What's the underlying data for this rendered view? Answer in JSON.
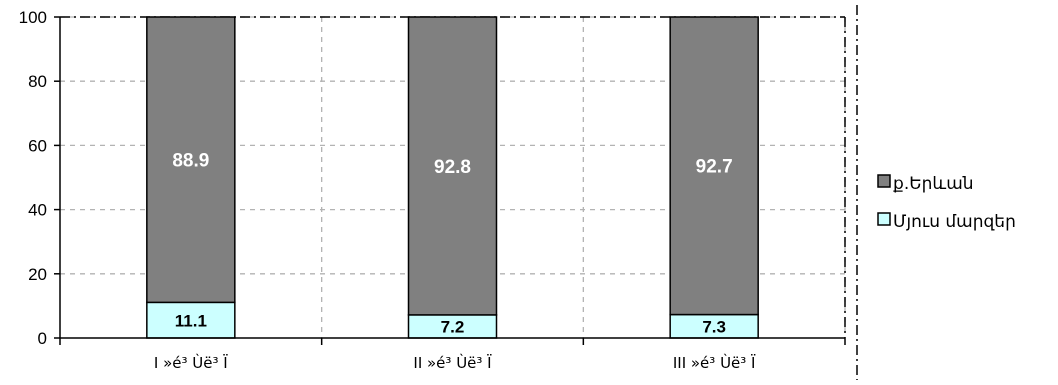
{
  "chart_data": {
    "type": "bar",
    "stacked": true,
    "categories": [
      "I »é³ Ùë³ Ï",
      "II »é³ Ùë³ Ï",
      "III »é³ Ùë³ Ï"
    ],
    "series": [
      {
        "name": "Մյուս մարզեր",
        "values": [
          11.1,
          7.2,
          7.3
        ],
        "color": "#ccffff",
        "label_color": "#000000"
      },
      {
        "name": "ք.Երևան",
        "values": [
          88.9,
          92.8,
          92.7
        ],
        "color": "#808080",
        "label_color": "#ffffff"
      }
    ],
    "ylim": [
      0,
      100
    ],
    "yticks": [
      0,
      20,
      40,
      60,
      80,
      100
    ],
    "grid": true,
    "legend_position": "right",
    "legend_order": [
      "ք.Երևան",
      "Մյուս մարզեր"
    ]
  }
}
